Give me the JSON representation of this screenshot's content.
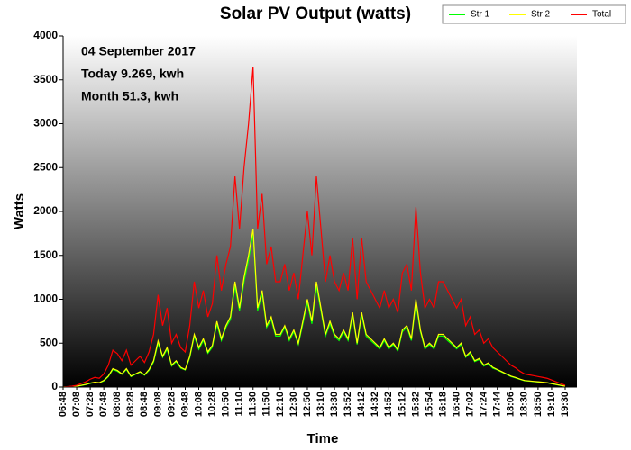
{
  "chart_data": {
    "type": "line",
    "title": "Solar PV Output (watts)",
    "annotations": [
      "04 September 2017",
      "Today 9.269, kwh",
      "Month 51.3, kwh"
    ],
    "x_label": "Time",
    "y_label": "Watts",
    "categories": [
      "06:48",
      null,
      null,
      "07:08",
      null,
      null,
      "07:28",
      null,
      null,
      "07:48",
      null,
      null,
      "08:08",
      null,
      null,
      "08:28",
      null,
      null,
      "08:48",
      null,
      null,
      "09:08",
      null,
      null,
      "09:28",
      null,
      null,
      "09:48",
      null,
      null,
      "10:08",
      null,
      null,
      "10:28",
      null,
      null,
      "10:50",
      null,
      null,
      "11:10",
      null,
      null,
      "11:30",
      null,
      null,
      "11:50",
      null,
      null,
      "12:10",
      null,
      null,
      "12:30",
      null,
      null,
      "12:50",
      null,
      null,
      "13:10",
      null,
      null,
      "13:30",
      null,
      null,
      "13:52",
      null,
      null,
      "14:12",
      null,
      null,
      "14:32",
      null,
      null,
      "14:52",
      null,
      null,
      "15:12",
      null,
      null,
      "15:32",
      null,
      null,
      "15:54",
      null,
      null,
      "16:18",
      null,
      null,
      "16:40",
      null,
      null,
      "17:02",
      null,
      null,
      "17:24",
      null,
      null,
      "17:44",
      null,
      null,
      "18:06",
      null,
      null,
      "18:30",
      null,
      null,
      "18:50",
      null,
      null,
      "19:10",
      null,
      null,
      "19:30"
    ],
    "series": [
      {
        "name": "Str 1",
        "color": "#00ff00",
        "values": [
          0,
          2,
          5,
          10,
          18,
          28,
          42,
          52,
          48,
          70,
          118,
          200,
          180,
          145,
          200,
          120,
          145,
          170,
          135,
          190,
          285,
          500,
          340,
          430,
          240,
          290,
          215,
          195,
          335,
          580,
          430,
          530,
          385,
          455,
          720,
          530,
          680,
          770,
          1150,
          870,
          1200,
          1450,
          1750,
          870,
          1060,
          680,
          770,
          580,
          580,
          680,
          530,
          630,
          485,
          720,
          960,
          720,
          1150,
          870,
          580,
          720,
          580,
          530,
          630,
          530,
          820,
          485,
          820,
          580,
          530,
          485,
          435,
          530,
          435,
          485,
          410,
          630,
          680,
          530,
          960,
          630,
          435,
          485,
          435,
          580,
          580,
          530,
          485,
          435,
          485,
          340,
          385,
          290,
          315,
          240,
          265,
          215,
          195,
          170,
          145,
          120,
          105,
          88,
          72,
          68,
          62,
          58,
          53,
          48,
          38,
          28,
          18,
          10
        ]
      },
      {
        "name": "Str 2",
        "color": "#ffff00",
        "values": [
          0,
          3,
          5,
          10,
          20,
          30,
          45,
          55,
          50,
          75,
          125,
          210,
          190,
          150,
          210,
          125,
          150,
          175,
          140,
          200,
          300,
          525,
          350,
          450,
          250,
          300,
          225,
          200,
          350,
          600,
          450,
          550,
          400,
          475,
          750,
          550,
          700,
          800,
          1200,
          900,
          1250,
          1500,
          1800,
          900,
          1100,
          700,
          800,
          600,
          600,
          700,
          550,
          650,
          500,
          750,
          1000,
          750,
          1200,
          900,
          600,
          750,
          600,
          550,
          650,
          550,
          850,
          500,
          850,
          600,
          550,
          500,
          450,
          550,
          450,
          500,
          425,
          650,
          700,
          550,
          1000,
          650,
          450,
          500,
          450,
          600,
          600,
          550,
          500,
          450,
          500,
          350,
          400,
          300,
          325,
          250,
          275,
          225,
          200,
          175,
          150,
          125,
          110,
          90,
          75,
          70,
          65,
          60,
          55,
          50,
          40,
          30,
          20,
          10
        ]
      },
      {
        "name": "Total",
        "color": "#ff0000",
        "values": [
          0,
          5,
          10,
          20,
          40,
          60,
          90,
          110,
          100,
          150,
          250,
          420,
          380,
          300,
          420,
          250,
          300,
          350,
          280,
          400,
          600,
          1050,
          700,
          900,
          500,
          600,
          450,
          400,
          700,
          1200,
          900,
          1100,
          800,
          950,
          1500,
          1100,
          1400,
          1600,
          2400,
          1800,
          2500,
          3000,
          3650,
          1800,
          2200,
          1400,
          1600,
          1200,
          1200,
          1400,
          1100,
          1300,
          1000,
          1500,
          2000,
          1500,
          2400,
          1800,
          1200,
          1500,
          1200,
          1100,
          1300,
          1100,
          1700,
          1000,
          1700,
          1200,
          1100,
          1000,
          900,
          1100,
          900,
          1000,
          850,
          1300,
          1400,
          1100,
          2050,
          1300,
          900,
          1000,
          900,
          1200,
          1200,
          1100,
          1000,
          900,
          1000,
          700,
          800,
          600,
          650,
          500,
          550,
          450,
          400,
          350,
          300,
          250,
          220,
          180,
          150,
          140,
          130,
          120,
          110,
          100,
          80,
          60,
          40,
          20
        ]
      }
    ],
    "ylim": [
      0,
      4000
    ],
    "yticks": [
      0,
      500,
      1000,
      1500,
      2000,
      2500,
      3000,
      3500,
      4000
    ],
    "grid": false,
    "legend": "top-right"
  }
}
